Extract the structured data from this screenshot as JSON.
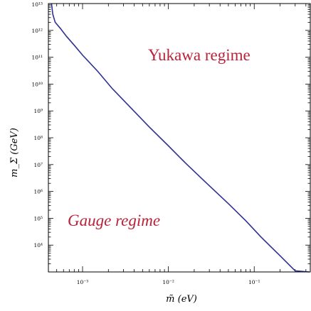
{
  "chart_data": {
    "type": "line",
    "title": "",
    "xlabel": "m̃ (eV)",
    "ylabel": "m_Σ (GeV)",
    "x_scale": "log",
    "y_scale": "log",
    "xlim": [
      0.0004,
      0.45
    ],
    "ylim": [
      1000,
      10000000000000.0
    ],
    "x_ticks": [
      {
        "value": 0.001,
        "label": "10⁻³"
      },
      {
        "value": 0.01,
        "label": "10⁻²"
      },
      {
        "value": 0.1,
        "label": "10⁻¹"
      }
    ],
    "y_ticks": [
      {
        "value": 10000.0,
        "label": "10⁴"
      },
      {
        "value": 100000.0,
        "label": "10⁵"
      },
      {
        "value": 1000000.0,
        "label": "10⁶"
      },
      {
        "value": 10000000.0,
        "label": "10⁷"
      },
      {
        "value": 100000000.0,
        "label": "10⁸"
      },
      {
        "value": 1000000000.0,
        "label": "10⁹"
      },
      {
        "value": 10000000000.0,
        "label": "10¹⁰"
      },
      {
        "value": 100000000000.0,
        "label": "10¹¹"
      },
      {
        "value": 1000000000000.0,
        "label": "10¹²"
      },
      {
        "value": 10000000000000.0,
        "label": "10¹³"
      }
    ],
    "series": [
      {
        "color": "#2e3192",
        "x": [
          0.000435,
          0.00045,
          0.00048,
          0.00055,
          0.00065,
          0.0008,
          0.001,
          0.0015,
          0.0022,
          0.0035,
          0.006,
          0.01,
          0.016,
          0.028,
          0.05,
          0.08,
          0.12,
          0.2,
          0.3,
          0.44
        ],
        "y": [
          10000000000000.0,
          4000000000000.0,
          2000000000000.0,
          1200000000000.0,
          600000000000.0,
          280000000000.0,
          120000000000.0,
          30000000000.0,
          7000000000.0,
          1500000000.0,
          250000000.0,
          50000000.0,
          11000000.0,
          2000000.0,
          350000.0,
          80000.0,
          20000.0,
          4000,
          1100,
          200
        ]
      }
    ],
    "annotations": [
      {
        "text": "Yukawa regime",
        "x": 0.035,
        "y": 300000000000.0
      },
      {
        "text": "Gauge regime",
        "x": 0.0025,
        "y": 110000.0
      }
    ],
    "grid": false
  }
}
